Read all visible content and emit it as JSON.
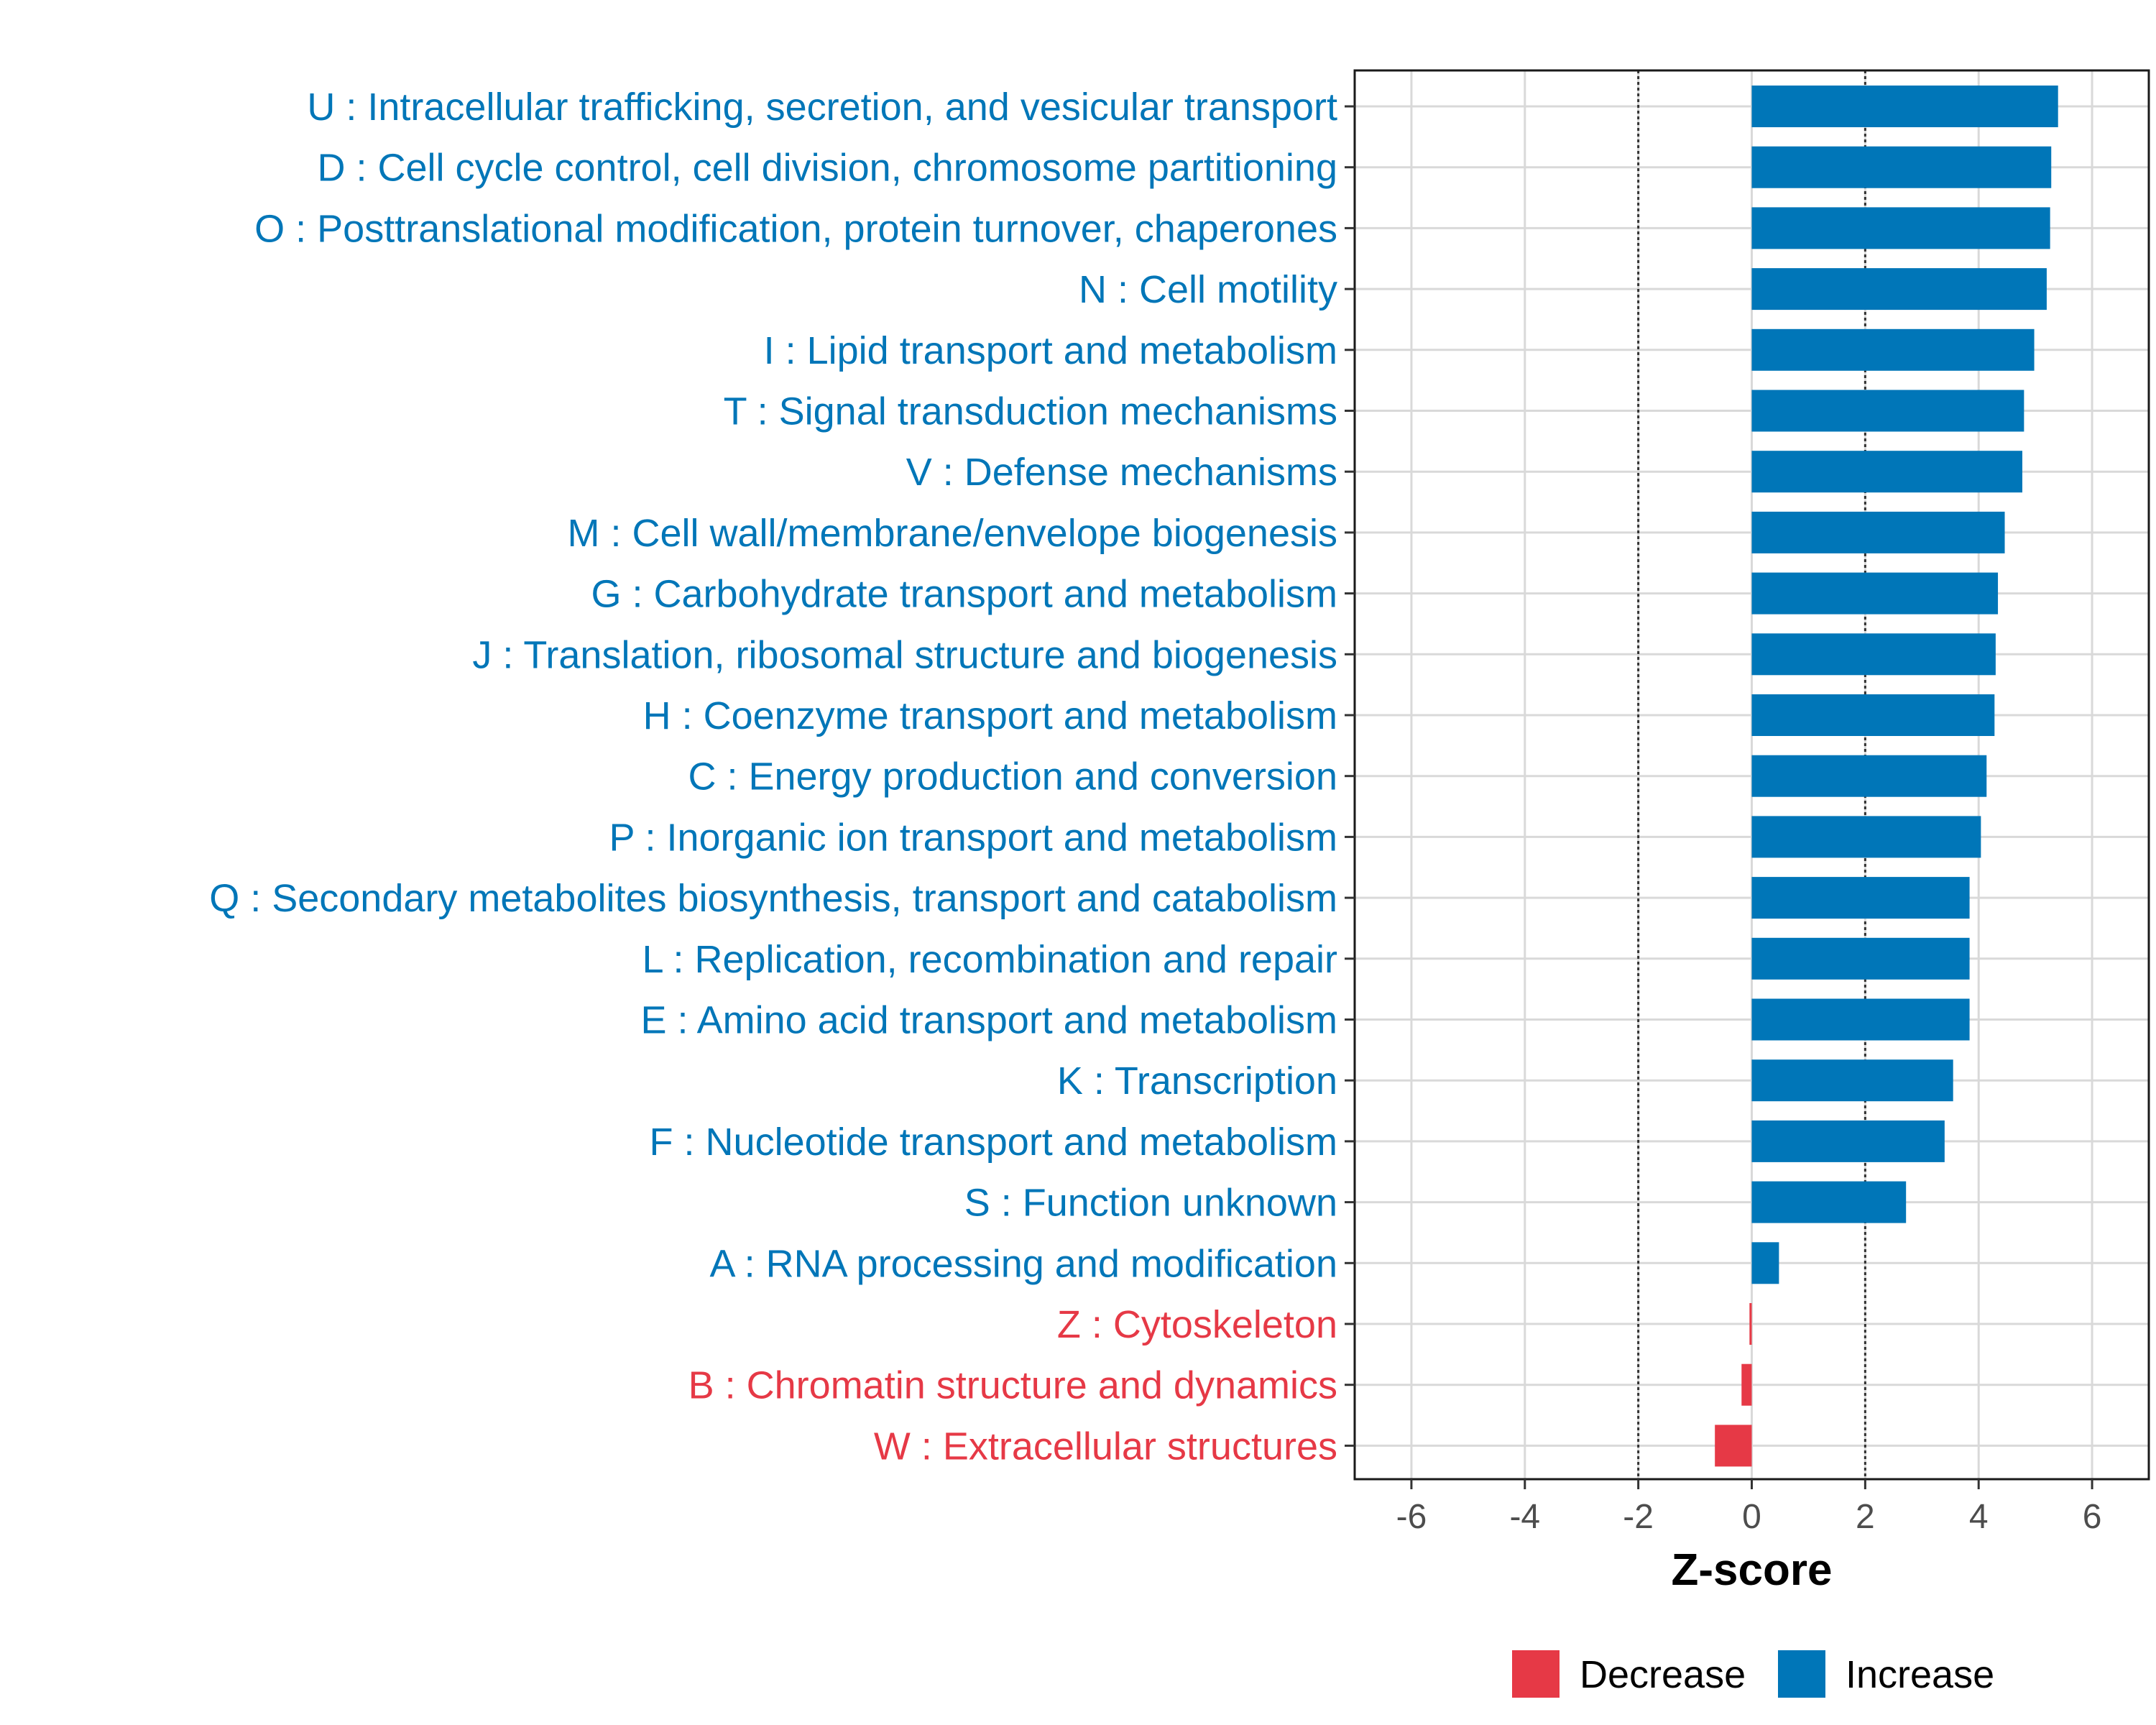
{
  "chart_data": {
    "type": "bar",
    "orientation": "horizontal",
    "xlabel": "Z-score",
    "xlim": [
      -7,
      7
    ],
    "x_ticks": [
      -6,
      -4,
      -2,
      0,
      2,
      4,
      6
    ],
    "x_tick_labels": [
      "-6",
      "-4",
      "-2",
      "0",
      "2",
      "4",
      "6"
    ],
    "reference_lines": [
      -2,
      2
    ],
    "grid": true,
    "categories": [
      "U : Intracellular trafficking, secretion, and vesicular transport",
      "D : Cell cycle control, cell division, chromosome partitioning",
      "O : Posttranslational modification, protein turnover, chaperones",
      "N : Cell motility",
      "I : Lipid transport and metabolism",
      "T : Signal transduction mechanisms",
      "V : Defense mechanisms",
      "M : Cell wall/membrane/envelope biogenesis",
      "G : Carbohydrate transport and metabolism",
      "J : Translation, ribosomal structure and biogenesis",
      "H : Coenzyme transport and metabolism",
      "C : Energy production and conversion",
      "P : Inorganic ion transport and metabolism",
      "Q : Secondary metabolites biosynthesis, transport and catabolism",
      "L : Replication, recombination and repair",
      "E : Amino acid transport and metabolism",
      "K : Transcription",
      "F : Nucleotide transport and metabolism",
      "S : Function unknown",
      "A : RNA processing and modification",
      "Z : Cytoskeleton",
      "B : Chromatin structure and dynamics",
      "W : Extracellular structures"
    ],
    "values": [
      5.4,
      5.28,
      5.26,
      5.2,
      4.98,
      4.8,
      4.77,
      4.46,
      4.34,
      4.3,
      4.28,
      4.14,
      4.04,
      3.84,
      3.84,
      3.84,
      3.55,
      3.4,
      2.72,
      0.48,
      -0.04,
      -0.18,
      -0.65
    ],
    "groups": [
      "Increase",
      "Increase",
      "Increase",
      "Increase",
      "Increase",
      "Increase",
      "Increase",
      "Increase",
      "Increase",
      "Increase",
      "Increase",
      "Increase",
      "Increase",
      "Increase",
      "Increase",
      "Increase",
      "Increase",
      "Increase",
      "Increase",
      "Increase",
      "Decrease",
      "Decrease",
      "Decrease"
    ],
    "legend": {
      "position": "bottom-right",
      "items": [
        {
          "name": "Decrease",
          "color": "#e63946"
        },
        {
          "name": "Increase",
          "color": "#0076b8"
        }
      ]
    },
    "colors": {
      "Increase": "#0076b8",
      "Decrease": "#e63946"
    }
  }
}
